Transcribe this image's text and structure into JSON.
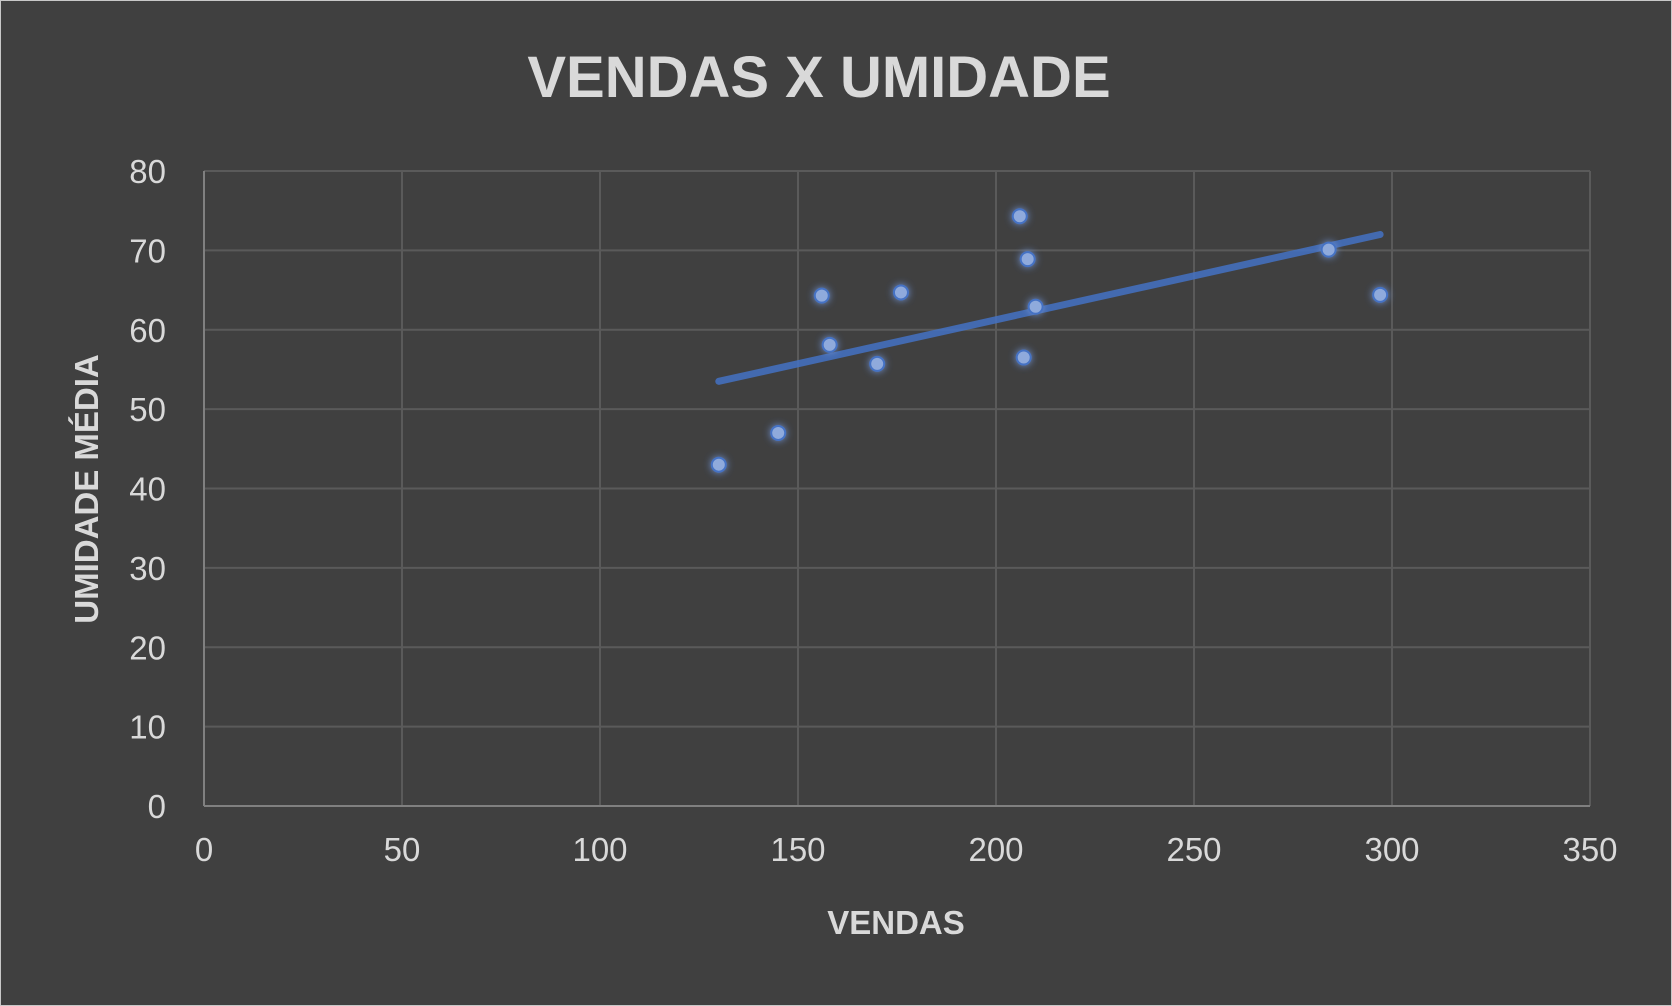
{
  "chart_data": {
    "type": "scatter",
    "title": "VENDAS X UMIDADE",
    "xlabel": "VENDAS",
    "ylabel": "UMIDADE MÉDIA",
    "xlim": [
      0,
      350
    ],
    "ylim": [
      0,
      80
    ],
    "xticks": [
      0,
      50,
      100,
      150,
      200,
      250,
      300,
      350
    ],
    "yticks": [
      0,
      10,
      20,
      30,
      40,
      50,
      60,
      70,
      80
    ],
    "xtick_labels": [
      "0",
      "50",
      "100",
      "150",
      "200",
      "250",
      "300",
      "350"
    ],
    "ytick_labels": [
      "0",
      "10",
      "20",
      "30",
      "40",
      "50",
      "60",
      "70",
      "80"
    ],
    "grid": true,
    "legend": "none",
    "point_color": "#8faadc",
    "trendline_color": "#4472c4",
    "trendline": {
      "type": "linear",
      "x": [
        130,
        297
      ],
      "y": [
        53.5,
        72.0
      ]
    },
    "series": [
      {
        "x": [
          130,
          145,
          156,
          158,
          170,
          176,
          206,
          207,
          208,
          210,
          284,
          297
        ],
        "y": [
          43,
          47,
          64.3,
          58.1,
          55.7,
          64.7,
          74.3,
          56.5,
          68.9,
          62.9,
          70.1,
          64.4
        ]
      }
    ]
  }
}
